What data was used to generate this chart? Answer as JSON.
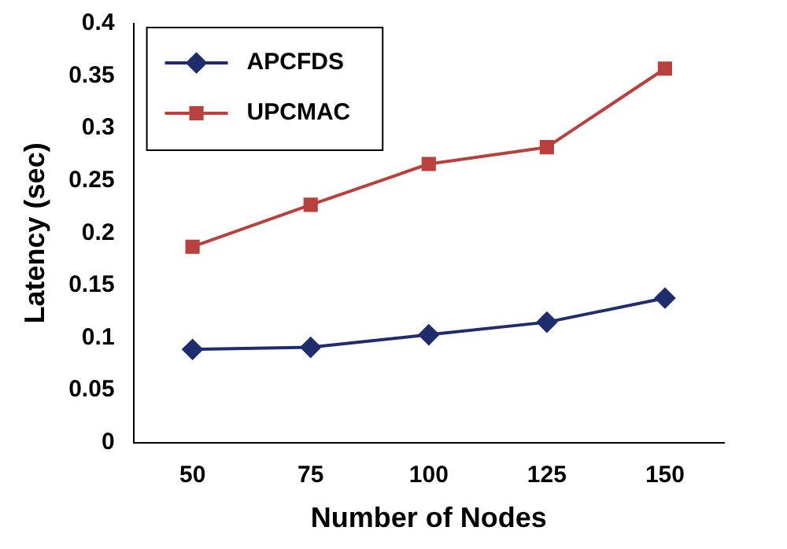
{
  "chart_data": {
    "type": "line",
    "xlabel": "Number of Nodes",
    "ylabel": "Latency (sec)",
    "categories": [
      "50",
      "75",
      "100",
      "125",
      "150"
    ],
    "series": [
      {
        "name": "APCFDS",
        "color": "#1f2d6e",
        "marker": "diamond",
        "values": [
          0.089,
          0.091,
          0.103,
          0.115,
          0.138
        ]
      },
      {
        "name": "UPCMAC",
        "color": "#b8403d",
        "marker": "square",
        "values": [
          0.187,
          0.227,
          0.266,
          0.282,
          0.357
        ]
      }
    ],
    "ylim": [
      0,
      0.4
    ],
    "yticks": [
      0,
      0.05,
      0.1,
      0.15,
      0.2,
      0.25,
      0.3,
      0.35,
      0.4
    ],
    "grid": false,
    "legend": "top left",
    "line_style": "solid"
  }
}
